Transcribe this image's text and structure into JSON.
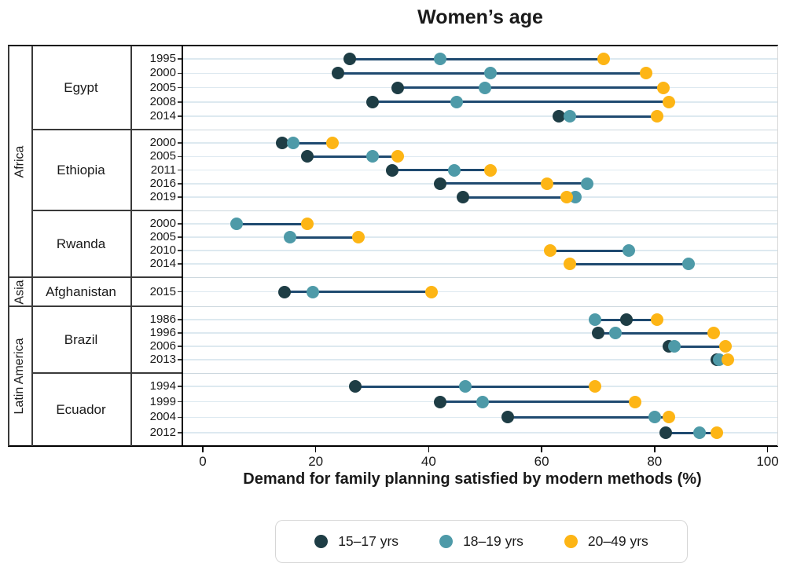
{
  "title": "Women’s age",
  "x_axis": {
    "label": "Demand for family planning satisfied by modern methods (%)",
    "tick_labels": [
      "0",
      "20",
      "40",
      "60",
      "80",
      "100"
    ],
    "range": [
      0,
      100
    ]
  },
  "legend": {
    "position": "bottom",
    "entries": [
      {
        "label": "15–17 yrs",
        "color": "#1e3d45"
      },
      {
        "label": "18–19 yrs",
        "color": "#4e9aa8"
      },
      {
        "label": "20–49 yrs",
        "color": "#fdb515"
      }
    ]
  },
  "colors": {
    "connector_line": "#1f4a70",
    "row_gridline": "#dde9f0",
    "section_line_plot": "#ccd7de",
    "table_border": "#3a3a3a",
    "frame": "#000000"
  },
  "chart_data": {
    "type": "scatter",
    "subtype": "connected-dot-plot",
    "grid": "on",
    "x_range": [
      0,
      100
    ],
    "x_ticks": [
      0,
      20,
      40,
      60,
      80,
      100
    ],
    "series_names": [
      "15–17 yrs",
      "18–19 yrs",
      "20–49 yrs"
    ],
    "regions": [
      {
        "name": "Africa",
        "countries": [
          {
            "name": "Egypt",
            "rows": [
              {
                "year": "1995",
                "values": [
                  26,
                  42,
                  71
                ]
              },
              {
                "year": "2000",
                "values": [
                  24,
                  51,
                  78.5
                ]
              },
              {
                "year": "2005",
                "values": [
                  34.5,
                  50,
                  81.5
                ]
              },
              {
                "year": "2008",
                "values": [
                  30,
                  45,
                  82.5
                ]
              },
              {
                "year": "2014",
                "values": [
                  63,
                  65,
                  80.5
                ]
              }
            ]
          },
          {
            "name": "Ethiopia",
            "rows": [
              {
                "year": "2000",
                "values": [
                  14,
                  16,
                  23
                ]
              },
              {
                "year": "2005",
                "values": [
                  18.5,
                  30,
                  34.5
                ]
              },
              {
                "year": "2011",
                "values": [
                  33.5,
                  44.5,
                  51
                ]
              },
              {
                "year": "2016",
                "values": [
                  42,
                  68,
                  61
                ]
              },
              {
                "year": "2019",
                "values": [
                  46,
                  66,
                  64.5
                ]
              }
            ]
          },
          {
            "name": "Rwanda",
            "rows": [
              {
                "year": "2000",
                "values": [
                  null,
                  6,
                  18.5
                ]
              },
              {
                "year": "2005",
                "values": [
                  null,
                  15.5,
                  27.5
                ]
              },
              {
                "year": "2010",
                "values": [
                  null,
                  75.5,
                  61.5
                ]
              },
              {
                "year": "2014",
                "values": [
                  null,
                  86,
                  65
                ]
              }
            ]
          }
        ]
      },
      {
        "name": "Asia",
        "countries": [
          {
            "name": "Afghanistan",
            "rows": [
              {
                "year": "2015",
                "values": [
                  14.5,
                  19.5,
                  40.5
                ]
              }
            ]
          }
        ]
      },
      {
        "name": "Latin America",
        "countries": [
          {
            "name": "Brazil",
            "rows": [
              {
                "year": "1986",
                "values": [
                  75,
                  69.5,
                  80.5
                ]
              },
              {
                "year": "1996",
                "values": [
                  70,
                  73,
                  90.5
                ]
              },
              {
                "year": "2006",
                "values": [
                  82.5,
                  83.5,
                  92.5
                ]
              },
              {
                "year": "2013",
                "values": [
                  91,
                  91.5,
                  93
                ]
              }
            ]
          },
          {
            "name": "Ecuador",
            "rows": [
              {
                "year": "1994",
                "values": [
                  27,
                  46.5,
                  69.5
                ]
              },
              {
                "year": "1999",
                "values": [
                  42,
                  49.5,
                  76.5
                ]
              },
              {
                "year": "2004",
                "values": [
                  54,
                  80,
                  82.5
                ]
              },
              {
                "year": "2012",
                "values": [
                  82,
                  88,
                  91
                ]
              }
            ]
          }
        ]
      }
    ]
  }
}
